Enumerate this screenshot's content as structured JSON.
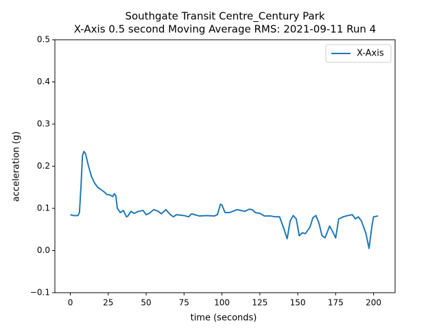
{
  "chart_data": {
    "type": "line",
    "title": [
      "Southgate Transit Centre_Century Park",
      "X-Axis 0.5 second Moving Average RMS: 2021-09-11 Run 4"
    ],
    "xlabel": "time (seconds)",
    "ylabel": "acceleration (g)",
    "xlim": [
      -10.2,
      214.2
    ],
    "xticks": [
      0,
      25,
      50,
      75,
      100,
      125,
      150,
      175,
      200
    ],
    "ylim": [
      -0.1,
      0.5
    ],
    "yticks": [
      {
        "value": -0.1,
        "label": "−0.1"
      },
      {
        "value": 0,
        "label": "0.0"
      },
      0.1,
      0.2,
      0.3,
      0.4,
      0.5
    ],
    "legend": "upper right",
    "x": [
      0,
      2,
      5,
      6,
      7,
      8,
      9,
      10,
      12,
      14,
      16,
      18,
      20,
      22,
      24,
      26,
      28,
      29,
      30,
      31,
      33,
      35,
      37,
      38,
      40,
      42,
      45,
      48,
      50,
      52,
      55,
      58,
      60,
      63,
      66,
      68,
      70,
      75,
      78,
      80,
      85,
      90,
      95,
      97,
      99,
      100,
      102,
      105,
      110,
      115,
      118,
      120,
      122,
      125,
      128,
      132,
      135,
      138,
      141,
      143,
      145,
      147,
      149,
      151,
      153,
      155,
      158,
      160,
      162,
      164,
      166,
      168,
      171,
      173,
      175,
      177,
      180,
      183,
      186,
      188,
      190,
      192,
      195,
      197,
      199,
      200,
      203
    ],
    "series": [
      {
        "name": "X-Axis",
        "color": "#1f77b4",
        "values": [
          0.085,
          0.083,
          0.083,
          0.09,
          0.15,
          0.225,
          0.235,
          0.23,
          0.2,
          0.175,
          0.16,
          0.15,
          0.145,
          0.14,
          0.133,
          0.132,
          0.128,
          0.135,
          0.13,
          0.1,
          0.09,
          0.095,
          0.08,
          0.082,
          0.093,
          0.088,
          0.093,
          0.095,
          0.085,
          0.088,
          0.097,
          0.093,
          0.087,
          0.097,
          0.085,
          0.08,
          0.085,
          0.083,
          0.08,
          0.087,
          0.082,
          0.083,
          0.082,
          0.085,
          0.11,
          0.108,
          0.09,
          0.09,
          0.097,
          0.093,
          0.098,
          0.097,
          0.09,
          0.088,
          0.082,
          0.082,
          0.08,
          0.08,
          0.05,
          0.028,
          0.07,
          0.083,
          0.075,
          0.035,
          0.042,
          0.04,
          0.055,
          0.078,
          0.083,
          0.065,
          0.035,
          0.03,
          0.058,
          0.045,
          0.03,
          0.075,
          0.08,
          0.083,
          0.085,
          0.075,
          0.08,
          0.07,
          0.04,
          0.005,
          0.06,
          0.08,
          0.082
        ]
      }
    ]
  }
}
